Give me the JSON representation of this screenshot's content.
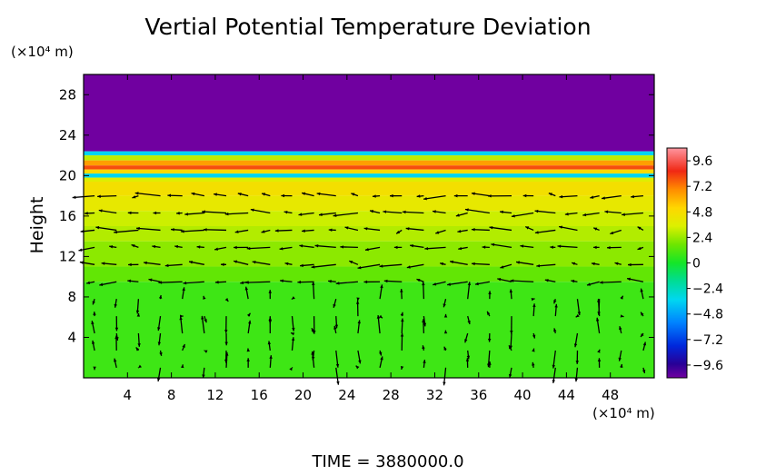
{
  "chart_data": {
    "type": "heatmap",
    "title": "Vertial Potential Temperature Deviation",
    "ylabel": "Height",
    "y_unit": "(×10⁴ m)",
    "x_unit": "(×10⁴ m)",
    "footer": "TIME  =  3880000.0",
    "xlim": [
      0,
      52
    ],
    "ylim": [
      0,
      30
    ],
    "x_ticks": [
      4,
      8,
      12,
      16,
      20,
      24,
      28,
      32,
      36,
      40,
      44,
      48
    ],
    "y_ticks": [
      4,
      8,
      12,
      16,
      20,
      24,
      28
    ],
    "colorbar": {
      "min": -10.8,
      "max": 10.8,
      "ticks": [
        9.6,
        7.2,
        4.8,
        2.4,
        0,
        -2.4,
        -4.8,
        -7.2,
        -9.6
      ],
      "tick_labels": [
        "9.6",
        "7.2",
        "4.8",
        "2.4",
        "0",
        "−2.4",
        "−4.8",
        "−7.2",
        "−9.6"
      ]
    },
    "field_layers": [
      {
        "y_from": 22.4,
        "y_to": 30,
        "value": -11
      },
      {
        "y_from": 22.0,
        "y_to": 22.4,
        "value": -3.5
      },
      {
        "y_from": 21.5,
        "y_to": 22.0,
        "value": 3.0
      },
      {
        "y_from": 21.0,
        "y_to": 21.5,
        "value": 6.5
      },
      {
        "y_from": 20.6,
        "y_to": 21.0,
        "value": 8.0
      },
      {
        "y_from": 20.2,
        "y_to": 20.6,
        "value": 5.0
      },
      {
        "y_from": 19.8,
        "y_to": 20.2,
        "value": -3.5
      },
      {
        "y_from": 19.4,
        "y_to": 19.8,
        "value": 3.6
      },
      {
        "y_from": 18.0,
        "y_to": 19.4,
        "value": 4.6
      },
      {
        "y_from": 16.5,
        "y_to": 18.0,
        "value": 4.0
      },
      {
        "y_from": 15.0,
        "y_to": 16.5,
        "value": 3.2
      },
      {
        "y_from": 13.5,
        "y_to": 15.0,
        "value": 2.8
      },
      {
        "y_from": 11.0,
        "y_to": 13.5,
        "value": 2.2
      },
      {
        "y_from": 9.5,
        "y_to": 11.0,
        "value": 1.5
      },
      {
        "y_from": 0,
        "y_to": 9.5,
        "value": 0.8
      }
    ],
    "vector_field": {
      "x_spacing": 2,
      "y_spacing": 1.7,
      "y_min": 1.0,
      "y_max": 19.5,
      "description_free": true
    },
    "grid": false,
    "colormap": "rainbow"
  }
}
